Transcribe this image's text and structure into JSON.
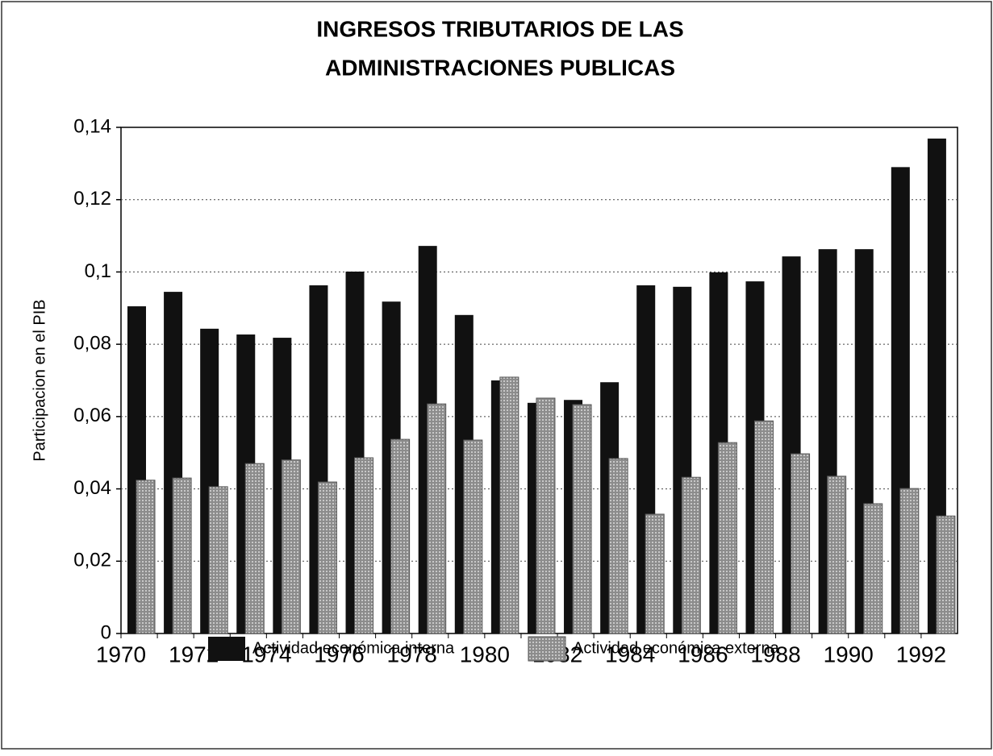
{
  "chart_data": {
    "type": "bar",
    "title": [
      "INGRESOS TRIBUTARIOS DE LAS",
      "ADMINISTRACIONES PUBLICAS"
    ],
    "y_label": "Participacion en el PIB",
    "categories": [
      "1970",
      null,
      "1972",
      null,
      "1974",
      null,
      "1976",
      null,
      "1978",
      null,
      "1980",
      null,
      "1982",
      null,
      "1984",
      null,
      "1986",
      null,
      "1988",
      null,
      "1990",
      null,
      "1992"
    ],
    "series": [
      {
        "name": "Actividad económica interna",
        "color": "#111111",
        "values": [
          0.0905,
          0.0945,
          0.0843,
          0.0827,
          0.0818,
          0.0963,
          0.1001,
          0.0918,
          0.1072,
          0.0881,
          0.07,
          0.0638,
          0.0646,
          0.0695,
          0.0963,
          0.0959,
          0.0999,
          0.0974,
          0.1043,
          0.1063,
          0.1063,
          0.129,
          0.1369
        ]
      },
      {
        "name": "Actividad económica externa",
        "color": "#9a9a9a",
        "values": [
          0.0424,
          0.043,
          0.0406,
          0.047,
          0.048,
          0.0419,
          0.0486,
          0.0537,
          0.0635,
          0.0535,
          0.0709,
          0.0651,
          0.0633,
          0.0484,
          0.033,
          0.0432,
          0.0528,
          0.0588,
          0.0497,
          0.0435,
          0.0359,
          0.0401,
          0.0325
        ]
      }
    ],
    "ylim": [
      0,
      0.14
    ],
    "yticks": [
      0,
      {
        "value": 0.02,
        "label": "0,02"
      },
      {
        "value": 0.04,
        "label": "0,04"
      },
      {
        "value": 0.06,
        "label": "0,06"
      },
      {
        "value": 0.08,
        "label": "0,08"
      },
      {
        "value": 0.1,
        "label": "0,1"
      },
      {
        "value": 0.12,
        "label": "0,12"
      },
      {
        "value": 0.14,
        "label": "0,14"
      }
    ],
    "grid": true
  }
}
